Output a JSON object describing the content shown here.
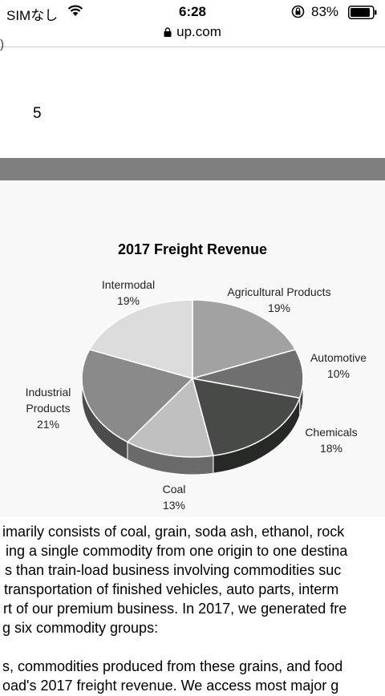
{
  "status_bar": {
    "carrier": "SIMなし",
    "time": "6:28",
    "battery": "83%"
  },
  "browser": {
    "url": "up.com"
  },
  "page": {
    "fragment": ")",
    "page_number": "5"
  },
  "chart_data": {
    "type": "pie",
    "title": "2017 Freight Revenue",
    "categories": [
      "Agricultural Products",
      "Automotive",
      "Chemicals",
      "Coal",
      "Industrial Products",
      "Intermodal"
    ],
    "values": [
      19,
      10,
      18,
      13,
      21,
      19
    ],
    "labels": [
      {
        "name": "Agricultural Products",
        "pct": "19%"
      },
      {
        "name": "Automotive",
        "pct": "10%"
      },
      {
        "name": "Chemicals",
        "pct": "18%"
      },
      {
        "name": "Coal",
        "pct": "13%"
      },
      {
        "name": "Industrial Products",
        "name_lines": [
          "Industrial",
          "Products"
        ],
        "pct": "21%"
      },
      {
        "name": "Intermodal",
        "pct": "19%"
      }
    ],
    "colors": [
      "#a2a2a2",
      "#6f6f6f",
      "#474a47",
      "#c0c0c0",
      "#8a8a8a",
      "#dcdcdc"
    ]
  },
  "body_lines": [
    "imarily consists of coal, grain, soda ash, ethanol, rock",
    "ing a single commodity from one origin to one destina",
    "s than train-load business involving commodities suc",
    "transportation of finished vehicles, auto parts, interm",
    "rt of our premium business. In 2017, we generated fre",
    "g six commodity groups:",
    "",
    "s, commodities produced from these grains, and food",
    "oad's 2017 freight revenue. We access most major g"
  ]
}
